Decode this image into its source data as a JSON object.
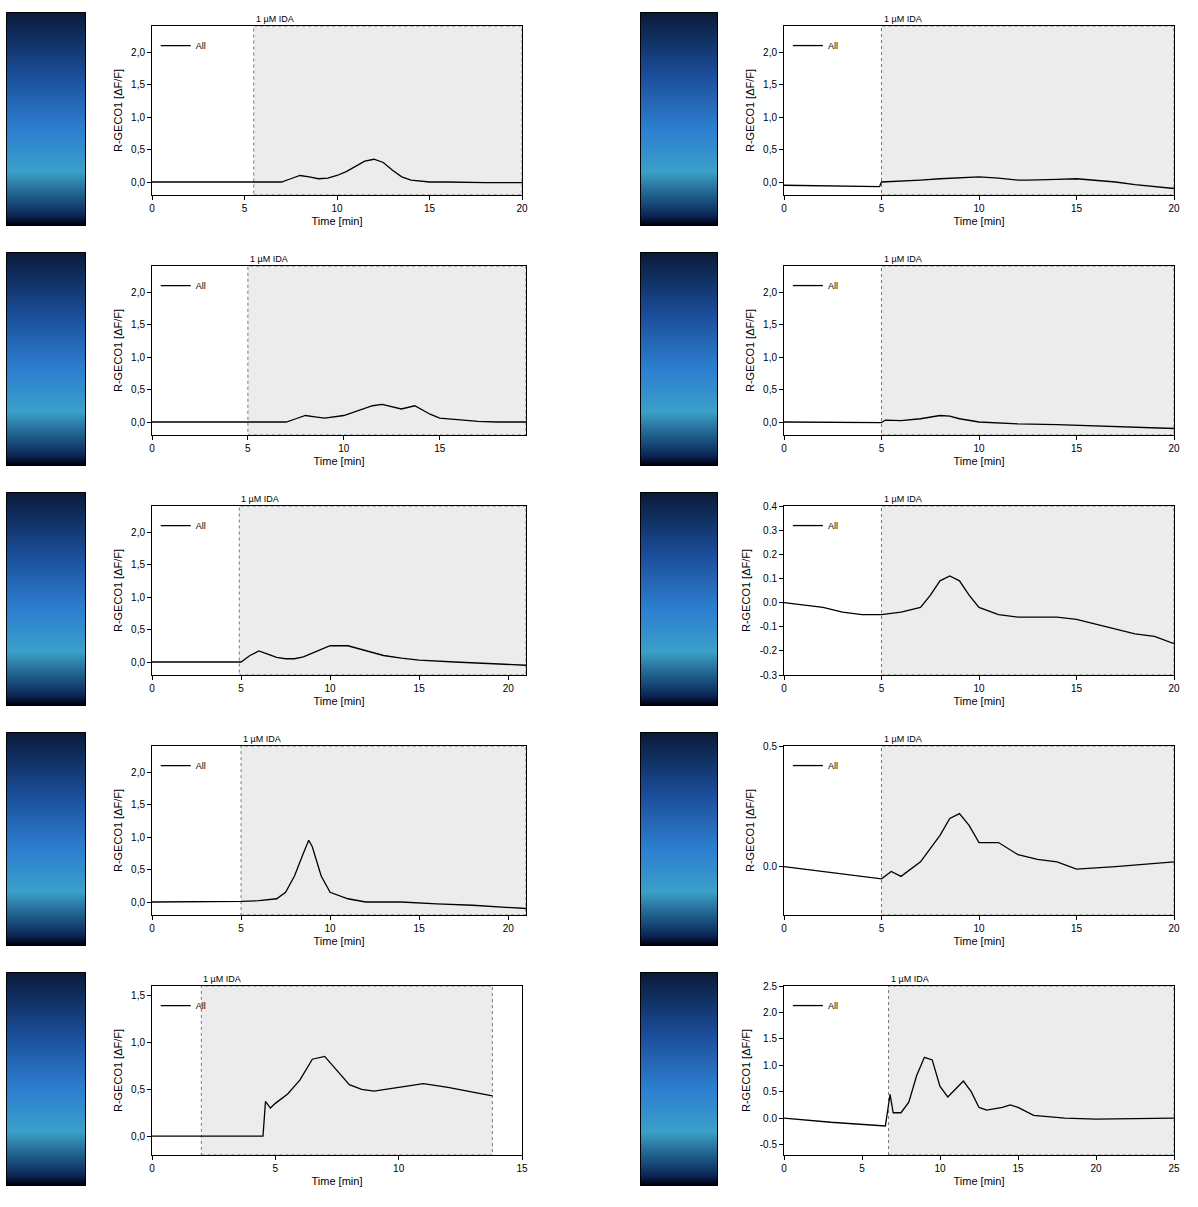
{
  "chart_data": [
    {
      "type": "line",
      "x_label": "Time [min]",
      "y_label": "R-GECO1 [ΔF/F]",
      "grid": false,
      "legend": "upper left",
      "x": [
        0,
        1,
        2,
        3,
        4,
        5,
        5.5,
        6,
        7,
        7.5,
        8,
        8.5,
        9,
        9.5,
        10,
        10.5,
        11,
        11.5,
        12,
        12.5,
        13,
        13.5,
        14,
        14.5,
        15,
        16,
        17,
        18,
        19,
        20
      ],
      "series": [
        {
          "name": "All",
          "color": "#000000",
          "values": [
            0,
            0,
            -0.01,
            0,
            0,
            0,
            0,
            -0.01,
            0,
            0.05,
            0.1,
            0.08,
            0.05,
            0.06,
            0.1,
            0.16,
            0.24,
            0.32,
            0.35,
            0.3,
            0.18,
            0.08,
            0.03,
            0.01,
            0,
            0,
            -0.01,
            -0.01,
            -0.01,
            -0.01
          ]
        }
      ],
      "xlim": [
        0,
        20
      ],
      "xticks": [
        0,
        5,
        10,
        15,
        20
      ],
      "ylim": [
        -0.2,
        2.4
      ],
      "yticks": [
        {
          "value": 0,
          "label": "0,0"
        },
        {
          "value": 0.5,
          "label": "0,5"
        },
        {
          "value": 1,
          "label": "1,0"
        },
        {
          "value": 1.5,
          "label": "1,5"
        },
        {
          "value": 2,
          "label": "2,0"
        }
      ],
      "shaded_region": {
        "label": "1 µM IDA",
        "x0": 5.5,
        "x1": 20
      }
    },
    {
      "type": "line",
      "x_label": "Time [min]",
      "y_label": "R-GECO1 [ΔF/F]",
      "grid": false,
      "legend": "upper left",
      "x": [
        0,
        2,
        4,
        4.9,
        5,
        6,
        7,
        8,
        9,
        10,
        11,
        12,
        12.5,
        13,
        14,
        15,
        16,
        17,
        18,
        19,
        20
      ],
      "series": [
        {
          "name": "All",
          "color": "#000000",
          "values": [
            -0.05,
            -0.06,
            -0.07,
            -0.07,
            0.0,
            0.01,
            0.03,
            0.05,
            0.07,
            0.08,
            0.06,
            0.03,
            0.03,
            0.03,
            0.04,
            0.05,
            0.03,
            0.0,
            -0.04,
            -0.07,
            -0.1
          ]
        }
      ],
      "xlim": [
        0,
        20
      ],
      "xticks": [
        0,
        5,
        10,
        15,
        20
      ],
      "ylim": [
        -0.2,
        2.4
      ],
      "yticks": [
        {
          "value": 0,
          "label": "0,0"
        },
        {
          "value": 0.5,
          "label": "0,5"
        },
        {
          "value": 1,
          "label": "1,0"
        },
        {
          "value": 1.5,
          "label": "1,5"
        },
        {
          "value": 2,
          "label": "2,0"
        }
      ],
      "shaded_region": {
        "label": "1 µM IDA",
        "x0": 5,
        "x1": 20
      }
    },
    {
      "type": "line",
      "x_label": "Time [min]",
      "y_label": "R-GECO1 [ΔF/F]",
      "grid": false,
      "legend": "upper left",
      "x": [
        0,
        2,
        4,
        5,
        6,
        7,
        7.5,
        8,
        8.5,
        9,
        10,
        10.5,
        11,
        11.5,
        12,
        12.5,
        13,
        13.7,
        14.5,
        15,
        16,
        17,
        18,
        19.5
      ],
      "series": [
        {
          "name": "All",
          "color": "#000000",
          "values": [
            0,
            0,
            0,
            -0.01,
            0,
            0,
            0.05,
            0.1,
            0.08,
            0.06,
            0.1,
            0.15,
            0.2,
            0.25,
            0.27,
            0.24,
            0.2,
            0.25,
            0.12,
            0.06,
            0.03,
            0.01,
            0,
            0
          ]
        }
      ],
      "xlim": [
        0,
        19.5
      ],
      "xticks": [
        0,
        5,
        10,
        15
      ],
      "ylim": [
        -0.2,
        2.4
      ],
      "yticks": [
        {
          "value": 0,
          "label": "0,0"
        },
        {
          "value": 0.5,
          "label": "0,5"
        },
        {
          "value": 1,
          "label": "1,0"
        },
        {
          "value": 1.5,
          "label": "1,5"
        },
        {
          "value": 2,
          "label": "2,0"
        }
      ],
      "shaded_region": {
        "label": "1 µM IDA",
        "x0": 5,
        "x1": 19.5
      }
    },
    {
      "type": "line",
      "x_label": "Time [min]",
      "y_label": "R-GECO1 [ΔF/F]",
      "grid": false,
      "legend": "upper left",
      "x": [
        0,
        2,
        4,
        5,
        5.2,
        6,
        7,
        7.5,
        8,
        8.5,
        9,
        10,
        11,
        12,
        14,
        15,
        16,
        18,
        19,
        20
      ],
      "series": [
        {
          "name": "All",
          "color": "#000000",
          "values": [
            0,
            0,
            -0.01,
            -0.01,
            0.03,
            0.02,
            0.05,
            0.08,
            0.1,
            0.09,
            0.05,
            0.0,
            -0.02,
            -0.03,
            -0.04,
            -0.05,
            -0.06,
            -0.08,
            -0.09,
            -0.1
          ]
        }
      ],
      "xlim": [
        0,
        20
      ],
      "xticks": [
        0,
        5,
        10,
        15,
        20
      ],
      "ylim": [
        -0.2,
        2.4
      ],
      "yticks": [
        {
          "value": 0,
          "label": "0,0"
        },
        {
          "value": 0.5,
          "label": "0,5"
        },
        {
          "value": 1,
          "label": "1,0"
        },
        {
          "value": 1.5,
          "label": "1,5"
        },
        {
          "value": 2,
          "label": "2,0"
        }
      ],
      "shaded_region": {
        "label": "1 µM IDA",
        "x0": 5,
        "x1": 20
      }
    },
    {
      "type": "line",
      "x_label": "Time [min]",
      "y_label": "R-GECO1 [ΔF/F]",
      "grid": false,
      "legend": "upper left",
      "x": [
        0,
        2,
        4,
        5,
        5.5,
        6,
        6.5,
        7,
        7.5,
        8,
        8.5,
        9,
        9.5,
        10,
        11,
        12,
        13,
        14,
        15,
        17,
        19,
        21
      ],
      "series": [
        {
          "name": "All",
          "color": "#000000",
          "values": [
            0,
            0,
            0,
            0,
            0.1,
            0.17,
            0.12,
            0.07,
            0.05,
            0.05,
            0.08,
            0.14,
            0.2,
            0.25,
            0.25,
            0.18,
            0.1,
            0.06,
            0.03,
            0,
            -0.03,
            -0.05
          ]
        }
      ],
      "xlim": [
        0,
        21
      ],
      "xticks": [
        0,
        5,
        10,
        15,
        20
      ],
      "ylim": [
        -0.2,
        2.4
      ],
      "yticks": [
        {
          "value": 0,
          "label": "0,0"
        },
        {
          "value": 0.5,
          "label": "0,5"
        },
        {
          "value": 1,
          "label": "1,0"
        },
        {
          "value": 1.5,
          "label": "1,5"
        },
        {
          "value": 2,
          "label": "2,0"
        }
      ],
      "shaded_region": {
        "label": "1 µM IDA",
        "x0": 4.9,
        "x1": 21
      }
    },
    {
      "type": "line",
      "x_label": "Time [min]",
      "y_label": "R-GECO1 [ΔF/F]",
      "grid": false,
      "legend": "upper left",
      "x": [
        0,
        1,
        2,
        3,
        4,
        5,
        6,
        7,
        7.5,
        8,
        8.5,
        9,
        9.5,
        10,
        11,
        12,
        13,
        14,
        15,
        16,
        17,
        18,
        19,
        20
      ],
      "series": [
        {
          "name": "All",
          "color": "#000000",
          "values": [
            0,
            -0.01,
            -0.02,
            -0.04,
            -0.05,
            -0.05,
            -0.04,
            -0.02,
            0.03,
            0.09,
            0.11,
            0.09,
            0.03,
            -0.02,
            -0.05,
            -0.06,
            -0.06,
            -0.06,
            -0.07,
            -0.09,
            -0.11,
            -0.13,
            -0.14,
            -0.17
          ]
        }
      ],
      "xlim": [
        0,
        20
      ],
      "xticks": [
        0,
        5,
        10,
        15,
        20
      ],
      "ylim": [
        -0.3,
        0.4
      ],
      "yticks": [
        -0.3,
        -0.2,
        -0.1,
        {
          "value": 0,
          "label": "0.0"
        },
        0.1,
        0.2,
        0.3,
        0.4
      ],
      "shaded_region": {
        "label": "1 µM IDA",
        "x0": 5,
        "x1": 20
      }
    },
    {
      "type": "line",
      "x_label": "Time [min]",
      "y_label": "R-GECO1 [ΔF/F]",
      "grid": false,
      "legend": "upper left",
      "x": [
        0,
        2,
        4,
        5,
        6,
        7,
        7.5,
        8,
        8.5,
        8.8,
        9,
        9.5,
        10,
        11,
        12,
        14,
        16,
        18,
        21
      ],
      "series": [
        {
          "name": "All",
          "color": "#000000",
          "values": [
            0,
            0,
            0,
            0.01,
            0.02,
            0.05,
            0.15,
            0.4,
            0.75,
            0.95,
            0.85,
            0.4,
            0.15,
            0.05,
            0,
            0,
            -0.03,
            -0.05,
            -0.1
          ]
        }
      ],
      "xlim": [
        0,
        21
      ],
      "xticks": [
        0,
        5,
        10,
        15,
        20
      ],
      "ylim": [
        -0.2,
        2.4
      ],
      "yticks": [
        {
          "value": 0,
          "label": "0,0"
        },
        {
          "value": 0.5,
          "label": "0,5"
        },
        {
          "value": 1,
          "label": "1,0"
        },
        {
          "value": 1.5,
          "label": "1,5"
        },
        {
          "value": 2,
          "label": "2,0"
        }
      ],
      "shaded_region": {
        "label": "1 µM IDA",
        "x0": 5,
        "x1": 21
      }
    },
    {
      "type": "line",
      "x_label": "Time [min]",
      "y_label": "R-GECO1 [ΔF/F]",
      "grid": false,
      "legend": "upper left",
      "x": [
        0,
        2,
        4,
        5,
        5.5,
        6,
        7,
        8,
        8.5,
        9,
        9.5,
        10,
        10.5,
        11,
        12,
        13,
        14,
        15,
        17,
        20
      ],
      "series": [
        {
          "name": "All",
          "color": "#000000",
          "values": [
            0,
            -0.02,
            -0.04,
            -0.05,
            -0.02,
            -0.04,
            0.02,
            0.13,
            0.2,
            0.22,
            0.17,
            0.1,
            0.1,
            0.1,
            0.05,
            0.03,
            0.02,
            -0.01,
            0,
            0.02
          ]
        }
      ],
      "xlim": [
        0,
        20
      ],
      "xticks": [
        0,
        5,
        10,
        15,
        20
      ],
      "ylim": [
        -0.2,
        0.5
      ],
      "yticks": [
        {
          "value": 0,
          "label": "0.0"
        },
        0.5
      ],
      "shaded_region": {
        "label": "1 µM IDA",
        "x0": 5,
        "x1": 20
      }
    },
    {
      "type": "line",
      "x_label": "Time [min]",
      "y_label": "R-GECO1 [ΔF/F]",
      "grid": false,
      "legend": "upper left",
      "x": [
        0,
        2,
        4,
        4.5,
        4.6,
        4.8,
        5,
        5.5,
        6,
        6.5,
        7,
        7.5,
        8,
        8.5,
        9,
        10,
        11,
        12,
        13,
        13.8
      ],
      "series": [
        {
          "name": "All",
          "color": "#000000",
          "values": [
            0,
            0,
            0,
            0,
            0.37,
            0.3,
            0.35,
            0.45,
            0.6,
            0.82,
            0.85,
            0.7,
            0.55,
            0.5,
            0.48,
            0.52,
            0.56,
            0.52,
            0.47,
            0.43
          ]
        }
      ],
      "xlim": [
        0,
        15
      ],
      "xticks": [
        0,
        5,
        10,
        15
      ],
      "ylim": [
        -0.2,
        1.6
      ],
      "yticks": [
        {
          "value": 0,
          "label": "0,0"
        },
        {
          "value": 0.5,
          "label": "0,5"
        },
        {
          "value": 1,
          "label": "1,0"
        },
        {
          "value": 1.5,
          "label": "1,5"
        }
      ],
      "shaded_region": {
        "label": "1 µM IDA",
        "x0": 2,
        "x1": 13.8
      }
    },
    {
      "type": "line",
      "x_label": "Time [min]",
      "y_label": "R-GECO1 [ΔF/F]",
      "grid": false,
      "legend": "upper left",
      "x": [
        0,
        3,
        6.5,
        6.8,
        7,
        7.5,
        8,
        8.5,
        9,
        9.5,
        10,
        10.5,
        11,
        11.5,
        12,
        12.5,
        13,
        14,
        14.5,
        15,
        16,
        18,
        20,
        25
      ],
      "series": [
        {
          "name": "All",
          "color": "#000000",
          "values": [
            0,
            -0.08,
            -0.15,
            0.45,
            0.1,
            0.1,
            0.3,
            0.8,
            1.15,
            1.1,
            0.6,
            0.4,
            0.55,
            0.7,
            0.5,
            0.2,
            0.15,
            0.2,
            0.25,
            0.2,
            0.05,
            0,
            -0.02,
            0
          ]
        }
      ],
      "xlim": [
        0,
        25
      ],
      "xticks": [
        0,
        5,
        10,
        15,
        20,
        25
      ],
      "ylim": [
        -0.7,
        2.5
      ],
      "yticks": [
        -0.5,
        {
          "value": 0,
          "label": "0.0"
        },
        0.5,
        {
          "value": 1,
          "label": "1.0"
        },
        1.5,
        {
          "value": 2,
          "label": "2.0"
        },
        2.5
      ],
      "shaded_region": {
        "label": "1 µM IDA",
        "x0": 6.7,
        "x1": 25
      }
    }
  ]
}
